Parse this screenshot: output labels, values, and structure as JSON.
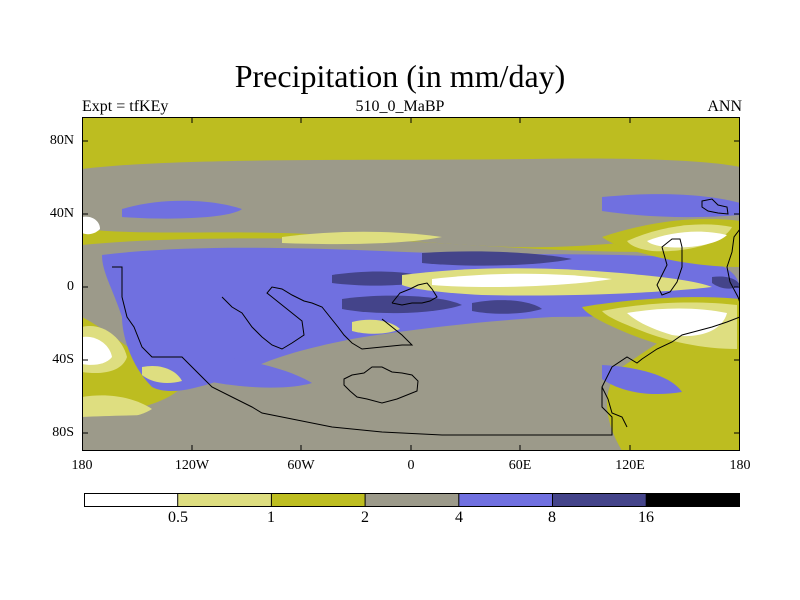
{
  "title": "Precipitation (in mm/day)",
  "subtitle_left": "Expt = tfKEy",
  "subtitle_center": "510_0_MaBP",
  "subtitle_right": "ANN",
  "y_ticks": [
    "80N",
    "40N",
    "0",
    "40S",
    "80S"
  ],
  "x_ticks": [
    "180",
    "120W",
    "60W",
    "0",
    "60E",
    "120E",
    "180"
  ],
  "colorbar": {
    "labels": [
      "0.5",
      "1",
      "2",
      "4",
      "8",
      "16"
    ],
    "colors": [
      "#ffffff",
      "#dede80",
      "#bdbd20",
      "#9c9a8a",
      "#7070e0",
      "#44448a",
      "#000000"
    ]
  },
  "map_colors": {
    "lt0_5": "#ffffff",
    "r0_5_1": "#dede80",
    "r1_2": "#bdbd20",
    "r2_4": "#9c9a8a",
    "r4_8": "#7070e0",
    "r8_16": "#44448a",
    "coastline": "#000000"
  }
}
